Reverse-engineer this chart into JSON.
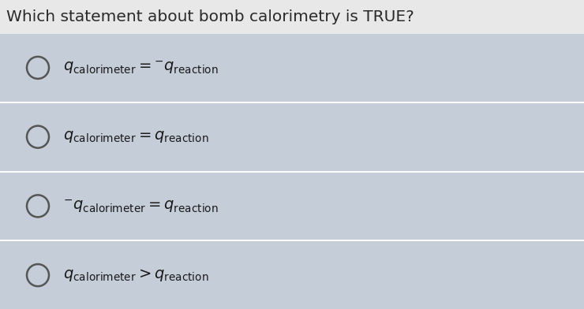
{
  "title": "Which statement about bomb calorimetry is TRUE?",
  "title_fontsize": 14.5,
  "title_color": "#2a2a2a",
  "title_bg_color": "#e8e8e8",
  "option_bg_color": "#c5cdd8",
  "option_border_color": "#b8c2cc",
  "option_separator_color": "#ffffff",
  "opt_labels": [
    "$q_{\\mathrm{calorimeter}} = {^{-}}q_{\\mathrm{reaction}}$",
    "$q_{\\mathrm{calorimeter}} = q_{\\mathrm{reaction}}$",
    "$^{-}q_{\\mathrm{calorimeter}} = q_{\\mathrm{reaction}}$",
    "$q_{\\mathrm{calorimeter}} > q_{\\mathrm{reaction}}$"
  ],
  "option_text_color": "#1a1a1a",
  "circle_edge_color": "#555555",
  "circle_fill_color": "#c5cdd8",
  "figsize": [
    7.4,
    3.92
  ],
  "dpi": 100,
  "fig_bg_color": "#e0e4ea"
}
